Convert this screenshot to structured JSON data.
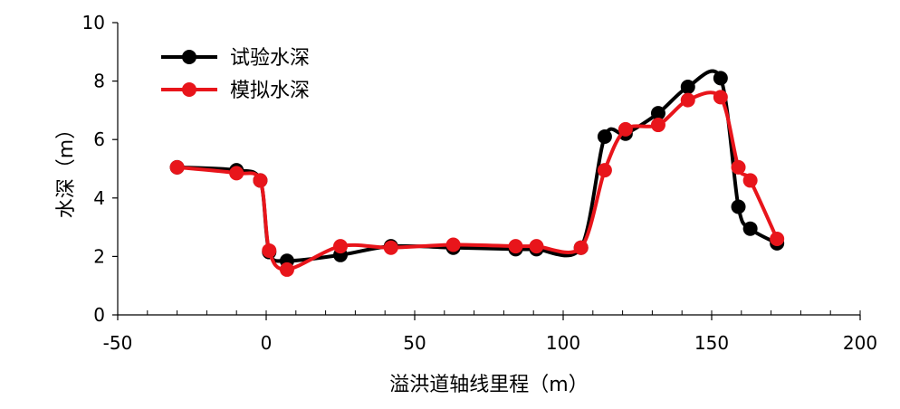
{
  "chart_data": {
    "type": "line",
    "xlabel": "溢洪道轴线里程（m）",
    "ylabel": "水深（m）",
    "xlim": [
      -50,
      200
    ],
    "ylim": [
      0,
      10
    ],
    "x_ticks": [
      -50,
      0,
      50,
      100,
      150,
      200
    ],
    "y_ticks": [
      0,
      2,
      4,
      6,
      8,
      10
    ],
    "x_tick_labels": [
      "-50",
      "0",
      "50",
      "100",
      "150",
      "200"
    ],
    "y_tick_labels": [
      "0",
      "2",
      "4",
      "6",
      "8",
      "10"
    ],
    "grid": false,
    "legend_position": "top-left",
    "series": [
      {
        "name": "试验水深",
        "color": "#000000",
        "x": [
          -30,
          -10,
          -2,
          1,
          7,
          25,
          42,
          63,
          84,
          91,
          106,
          114,
          121,
          132,
          142,
          153,
          159,
          163,
          172
        ],
        "y": [
          5.05,
          4.95,
          4.6,
          2.15,
          1.85,
          2.05,
          2.35,
          2.3,
          2.25,
          2.25,
          2.3,
          6.1,
          6.2,
          6.9,
          7.8,
          8.1,
          3.7,
          2.95,
          2.45
        ]
      },
      {
        "name": "模拟水深",
        "color": "#e8151b",
        "x": [
          -30,
          -10,
          -2,
          1,
          7,
          25,
          42,
          63,
          84,
          91,
          106,
          114,
          121,
          132,
          142,
          153,
          159,
          163,
          172
        ],
        "y": [
          5.05,
          4.85,
          4.6,
          2.2,
          1.55,
          2.35,
          2.3,
          2.4,
          2.35,
          2.35,
          2.3,
          4.95,
          6.35,
          6.5,
          7.35,
          7.45,
          5.05,
          4.6,
          2.6
        ]
      }
    ]
  }
}
